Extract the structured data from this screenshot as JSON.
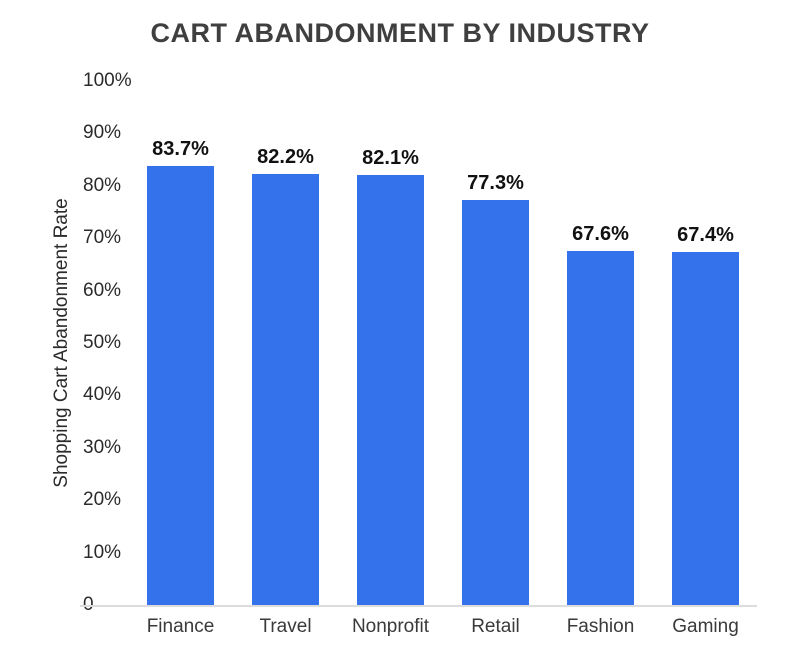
{
  "chart_data": {
    "type": "bar",
    "title": "CART ABANDONMENT BY INDUSTRY",
    "categories": [
      "Finance",
      "Travel",
      "Nonprofit",
      "Retail",
      "Fashion",
      "Gaming"
    ],
    "values": [
      83.7,
      82.2,
      82.1,
      77.3,
      67.6,
      67.4
    ],
    "bar_labels": [
      "83.7%",
      "82.2%",
      "82.1%",
      "77.3%",
      "67.6%",
      "67.4%"
    ],
    "xlabel": "",
    "ylabel": "Shopping Cart Abandonment Rate",
    "ylim": [
      0,
      100
    ],
    "y_ticks": [
      "100%",
      "90%",
      "80%",
      "70%",
      "60%",
      "50%",
      "40%",
      "30%",
      "20%",
      "10%",
      "0"
    ],
    "y_tick_values": [
      100,
      90,
      80,
      70,
      60,
      50,
      40,
      30,
      20,
      10,
      0
    ],
    "grid": false,
    "legend": false,
    "colors": {
      "bar": "#3372eb",
      "title": "#3f3f3f",
      "tick_text": "#2b2b2b",
      "value_label_text": "#111111",
      "category_text": "#3a3a3a",
      "axis_line": "#dcdcdc",
      "background": "#ffffff"
    }
  }
}
